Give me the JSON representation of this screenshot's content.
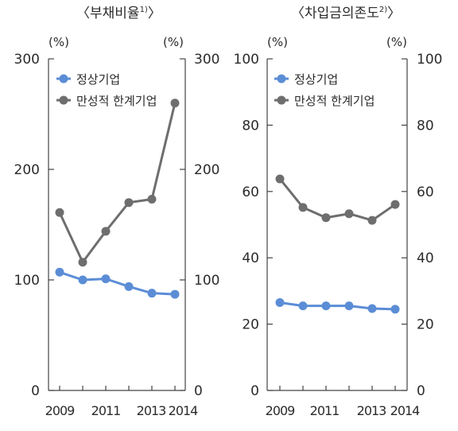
{
  "charts": [
    {
      "title": "〈부채비율",
      "title_note": "1)",
      "title_close": "〉",
      "unit_left": "(%)",
      "unit_right": "(%)"
    },
    {
      "title": "〈차입금의존도",
      "title_note": "2)",
      "title_close": "〉",
      "unit_left": "(%)",
      "unit_right": "(%)"
    }
  ],
  "chart_data": [
    {
      "type": "line",
      "title": "부채비율",
      "x": [
        2009,
        2010,
        2011,
        2012,
        2013,
        2014
      ],
      "x_tick_labels": [
        "2009",
        "2011",
        "2013",
        "2014"
      ],
      "ylim": [
        0,
        300
      ],
      "y_ticks": [
        "0",
        "100",
        "200",
        "300"
      ],
      "ylabel": "(%)",
      "y2label": "(%)",
      "legend_position": "top-left",
      "series": [
        {
          "name": "정상기업",
          "color": "#5b8dd6",
          "values": [
            107,
            100,
            101,
            94,
            88,
            87
          ]
        },
        {
          "name": "만성적 한계기업",
          "color": "#6e6e6e",
          "values": [
            161,
            116,
            144,
            170,
            173,
            260
          ]
        }
      ]
    },
    {
      "type": "line",
      "title": "차입금의존도",
      "x": [
        2009,
        2010,
        2011,
        2012,
        2013,
        2014
      ],
      "x_tick_labels": [
        "2009",
        "2011",
        "2013",
        "2014"
      ],
      "ylim": [
        0,
        100
      ],
      "y_ticks": [
        "0",
        "20",
        "40",
        "60",
        "80",
        "100"
      ],
      "ylabel": "(%)",
      "y2label": "(%)",
      "legend_position": "top-left",
      "series": [
        {
          "name": "정상기업",
          "color": "#5b8dd6",
          "values": [
            26.5,
            25.5,
            25.5,
            25.5,
            24.7,
            24.5
          ]
        },
        {
          "name": "만성적 한계기업",
          "color": "#6e6e6e",
          "values": [
            63.8,
            55.2,
            52.1,
            53.3,
            51.3,
            56.1
          ]
        }
      ]
    }
  ]
}
